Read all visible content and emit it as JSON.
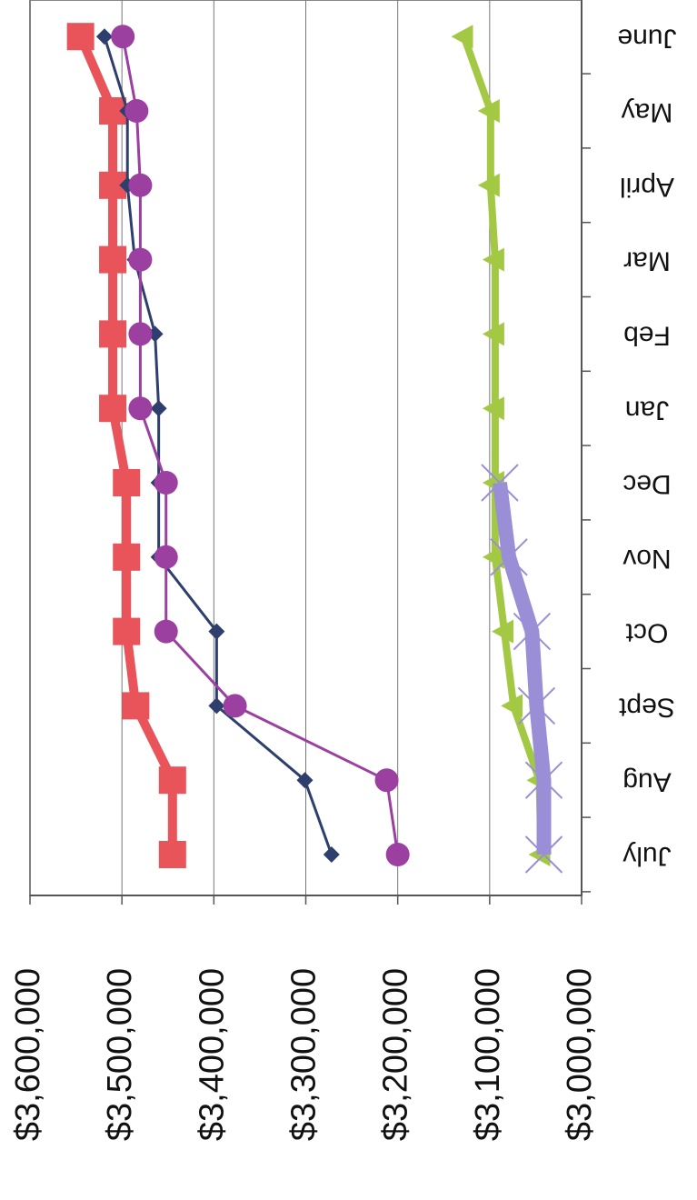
{
  "chart_data": {
    "type": "line",
    "categories": [
      "July",
      "Aug",
      "Sept",
      "Oct",
      "Nov",
      "Dec",
      "Jan",
      "Feb",
      "Mar",
      "April",
      "May",
      "June"
    ],
    "series": [
      {
        "color": "#e8545a",
        "marker": "square",
        "values": [
          3445000,
          3445000,
          3485000,
          3495000,
          3495000,
          3495000,
          3510000,
          3510000,
          3510000,
          3510000,
          3510000,
          3545000
        ]
      },
      {
        "color": "#2e3f6e",
        "marker": "diamond",
        "values": [
          3272000,
          3301000,
          3397000,
          3397000,
          3460000,
          3460000,
          3460000,
          3464000,
          3486000,
          3494000,
          3494000,
          3519000
        ]
      },
      {
        "color": "#9b3fa0",
        "marker": "circle",
        "values": [
          3200000,
          3212000,
          3377000,
          3452000,
          3452000,
          3452000,
          3480000,
          3480000,
          3480000,
          3480000,
          3484000,
          3499000
        ]
      },
      {
        "color": "#a3c944",
        "marker": "triangle",
        "values": [
          3044000,
          3046000,
          3074000,
          3084000,
          3094000,
          3094000,
          3094000,
          3094000,
          3094000,
          3099000,
          3099000,
          3128000
        ]
      },
      {
        "color": "#9a8fd6",
        "marker": "x",
        "values": [
          3041000,
          3041000,
          3049000,
          3054000,
          3079000,
          3089000,
          null,
          null,
          null,
          null,
          null,
          null
        ]
      }
    ],
    "ylim": [
      3000000,
      3600000
    ],
    "yticks": [
      {
        "value": 3000000,
        "label": "$3,000,000"
      },
      {
        "value": 3100000,
        "label": "$3,100,000"
      },
      {
        "value": 3200000,
        "label": "$3,200,000"
      },
      {
        "value": 3300000,
        "label": "$3,300,000"
      },
      {
        "value": 3400000,
        "label": "$3,400,000"
      },
      {
        "value": 3500000,
        "label": "$3,500,000"
      },
      {
        "value": 3600000,
        "label": "$3,600,000"
      }
    ],
    "grid": true
  }
}
